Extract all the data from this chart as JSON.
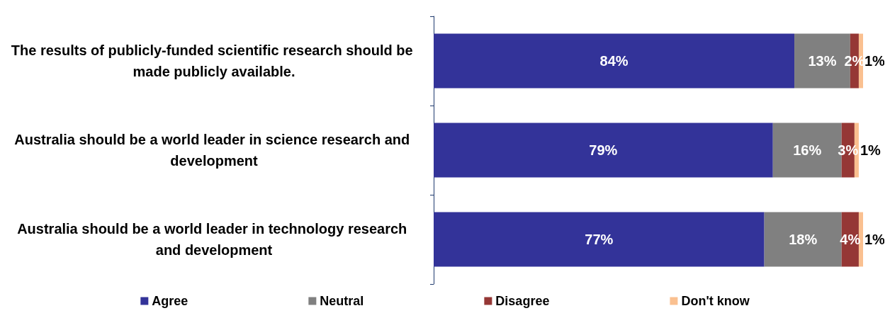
{
  "chart_data": {
    "type": "bar",
    "orientation": "horizontal",
    "stacked": true,
    "legend": "bottom",
    "tick_labels": "y",
    "categories": [
      "The results of publicly-funded scientific research should be made publicly available.",
      "Australia should be a world leader in science research and development",
      "Australia should be a world leader in technology research and development"
    ],
    "series": [
      {
        "name": "Agree",
        "color": "#333399",
        "values": [
          84,
          79,
          77
        ],
        "value_labels": [
          "84%",
          "79%",
          "77%"
        ]
      },
      {
        "name": "Neutral",
        "color": "#808080",
        "values": [
          13,
          16,
          18
        ],
        "value_labels": [
          "13%",
          "16%",
          "18%"
        ]
      },
      {
        "name": "Disagree",
        "color": "#953735",
        "values": [
          2,
          3,
          4
        ],
        "value_labels": [
          "2%",
          "3%",
          "4%"
        ]
      },
      {
        "name": "Don't know",
        "color": "#fac090",
        "values": [
          1,
          1,
          1
        ],
        "value_labels": [
          "1%",
          "1%",
          "1%"
        ]
      }
    ]
  }
}
